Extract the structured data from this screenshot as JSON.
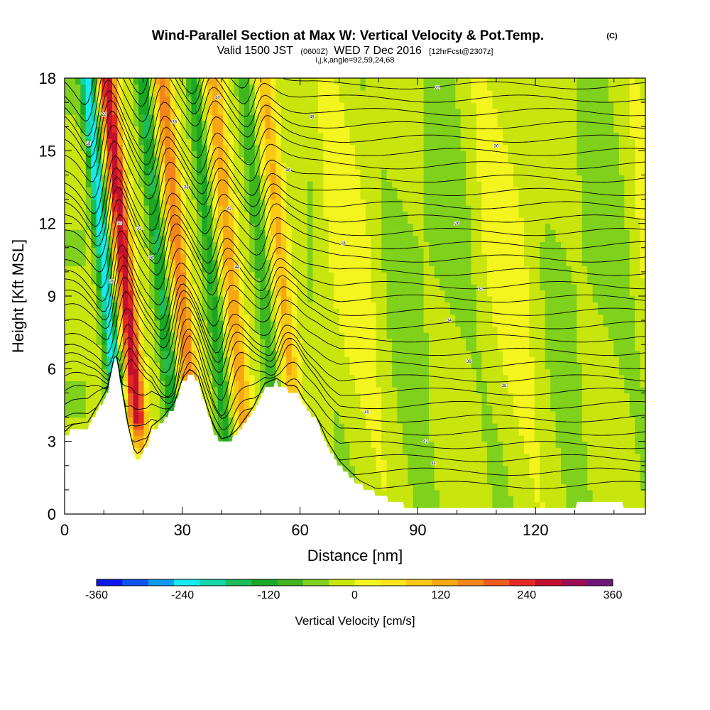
{
  "header": {
    "title": "Wind-Parallel Section at Max W: Vertical Velocity & Pot.Temp.",
    "copyright": "(C)",
    "valid_a": "Valid 1500 JST",
    "valid_zulu": "(0600Z)",
    "valid_b": "WED 7 Dec 2016",
    "forecast": "[12hrFcst@2307z]",
    "indices": "i,j,k,angle=92,59,24,68"
  },
  "chart_data": {
    "type": "heatmap",
    "xlabel": "Distance [nm]",
    "ylabel": "Height [Kft MSL]",
    "xlim": [
      0,
      148
    ],
    "ylim": [
      0,
      18
    ],
    "x_ticks": [
      "0",
      "30",
      "60",
      "90",
      "120"
    ],
    "y_ticks": [
      "0",
      "3",
      "6",
      "9",
      "12",
      "15",
      "18"
    ],
    "grid": false,
    "color_field": "Vertical Velocity [cm/s]",
    "contour_field": "Potential temperature",
    "colorbar": {
      "label": "Vertical Velocity [cm/s]",
      "min": -360,
      "max": 360,
      "step": 40,
      "tick_labels": [
        "-360",
        "-240",
        "-120",
        "0",
        "120",
        "240",
        "360"
      ],
      "colors": [
        "#0b17ee",
        "#0d52f2",
        "#0d9bf0",
        "#14eaf0",
        "#12d5a8",
        "#19bd5c",
        "#1aa824",
        "#3fb51e",
        "#7fd11c",
        "#c9e50e",
        "#f4f41e",
        "#fce51c",
        "#f8c812",
        "#f6a812",
        "#f3861a",
        "#ed5c1e",
        "#e52823",
        "#c4102e",
        "#9e0c55",
        "#6f1479"
      ]
    },
    "terrain_profile": {
      "x": [
        0,
        2,
        6,
        11,
        13,
        15,
        16,
        17,
        18,
        19,
        21,
        22,
        25,
        28,
        30,
        32,
        34,
        36,
        38,
        40,
        42,
        44,
        48,
        51,
        54,
        57,
        59,
        61,
        64,
        67,
        70,
        75,
        80,
        85,
        90,
        95,
        100,
        110,
        120,
        130,
        131,
        140,
        143,
        148
      ],
      "height": [
        3.2,
        3.5,
        3.6,
        5.0,
        6.6,
        4.6,
        3.6,
        2.9,
        2.3,
        2.3,
        2.8,
        3.4,
        3.8,
        4.4,
        5.4,
        5.8,
        5.5,
        4.4,
        3.4,
        2.9,
        3.0,
        3.3,
        4.2,
        5.2,
        5.4,
        5.1,
        5.1,
        4.5,
        3.9,
        2.8,
        2.0,
        1.2,
        0.8,
        0.4,
        0.3,
        0.3,
        0.3,
        0.3,
        0.3,
        0.3,
        0.6,
        0.6,
        0.3,
        0.3
      ]
    },
    "wave_train": {
      "updraft_cores_nm": [
        18,
        32,
        45,
        58
      ],
      "downdraft_cores_nm": [
        13,
        27,
        40,
        53
      ],
      "peak_updraft_cm_s": 340,
      "peak_downdraft_cm_s": -250
    },
    "contour_labels": [
      "18",
      "22",
      "26",
      "30",
      "32",
      "34",
      "36",
      "38",
      "40",
      "42",
      "44",
      "46",
      "48"
    ]
  }
}
